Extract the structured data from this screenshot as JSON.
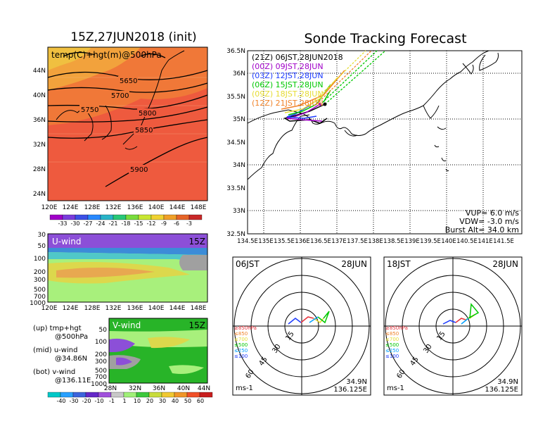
{
  "left_title": "15Z,27JUN2018 (init)",
  "right_title": "Sonde Tracking Forecast",
  "top_map": {
    "field_label": "temp(C)+hgt(m)@500hPa",
    "lat_labels": [
      "44N",
      "40N",
      "36N",
      "32N",
      "28N",
      "24N"
    ],
    "lon_labels": [
      "120E",
      "124E",
      "128E",
      "132E",
      "136E",
      "140E",
      "144E",
      "148E"
    ],
    "contours": [
      "5650",
      "5700",
      "5750",
      "5800",
      "5850",
      "5900"
    ],
    "colorbar_labels": [
      "-33",
      "-30",
      "-27",
      "-24",
      "-21",
      "-18",
      "-15",
      "-12",
      "-9",
      "-6",
      "-3"
    ]
  },
  "u_panel": {
    "label": "U-wind",
    "time": "15Z",
    "p_labels": [
      "30",
      "50",
      "100",
      "200",
      "300",
      "500",
      "700",
      "1000"
    ],
    "lon_labels": [
      "120E",
      "124E",
      "128E",
      "132E",
      "136E",
      "140E",
      "144E",
      "148E"
    ]
  },
  "v_panel": {
    "label": "V-wind",
    "time": "15Z",
    "p_labels": [
      "50",
      "100",
      "200",
      "300",
      "500",
      "700",
      "1000"
    ],
    "lat_labels": [
      "28N",
      "32N",
      "36N",
      "40N",
      "44N"
    ]
  },
  "wind_colorbar_labels": [
    "-40",
    "-30",
    "-20",
    "-10",
    "-1",
    "1",
    "10",
    "20",
    "30",
    "40",
    "50",
    "60"
  ],
  "notes": {
    "up": "(up) tmp+hgt",
    "up2": "@500hPa",
    "mid": "(mid) u-wind",
    "mid2": "@34.86N",
    "bot": "(bot) v-wind",
    "bot2": "@136.11E"
  },
  "track_map": {
    "lat_labels": [
      "36.5N",
      "36N",
      "35.5N",
      "35N",
      "34.5N",
      "34N",
      "33.5N",
      "33N",
      "32.5N"
    ],
    "lon_labels": [
      "134.5E",
      "135E",
      "135.5E",
      "136E",
      "136.5E",
      "137E",
      "137.5E",
      "138E",
      "138.5E",
      "139E",
      "139.5E",
      "140E",
      "140.5E",
      "141E",
      "141.5E"
    ],
    "legend": [
      {
        "text": "(21Z) 06JST,28JUN2018",
        "color": "#000000"
      },
      {
        "text": "(00Z) 09JST,28JUN",
        "color": "#a000c8"
      },
      {
        "text": "(03Z) 12JST,28JUN",
        "color": "#1e3cff"
      },
      {
        "text": "(06Z) 15JST,28JUN",
        "color": "#00c800"
      },
      {
        "text": "(09Z) 18JST,28JUN",
        "color": "#e6dc32"
      },
      {
        "text": "(12Z) 21JST,28JUN",
        "color": "#f08228"
      }
    ],
    "vup": "VUP= 6.0 m/s",
    "vdw": "VDW= -3.0 m/s",
    "burst": "Burst Alt= 34.0 km"
  },
  "hodo1": {
    "time": "06JST",
    "date": "28JUN",
    "rings": [
      "15",
      "30",
      "45",
      "60"
    ],
    "levels": [
      {
        "text": "≥850hPa",
        "color": "#e6323c"
      },
      {
        "text": "≤850",
        "color": "#f08228"
      },
      {
        "text": "≤700",
        "color": "#e6dc32"
      },
      {
        "text": "≤500",
        "color": "#00c800"
      },
      {
        "text": "≤250",
        "color": "#00a0ff"
      },
      {
        "text": "≤100",
        "color": "#1e3cff"
      }
    ],
    "units": "ms-1",
    "lat": "34.9N",
    "lon": "136.125E"
  },
  "hodo2": {
    "time": "18JST",
    "date": "28JUN",
    "rings": [
      "15",
      "30",
      "45",
      "60"
    ],
    "levels": [
      {
        "text": "≥850hPa",
        "color": "#e6323c"
      },
      {
        "text": "≤850",
        "color": "#f08228"
      },
      {
        "text": "≤700",
        "color": "#e6dc32"
      },
      {
        "text": "≤500",
        "color": "#00c800"
      },
      {
        "text": "≤250",
        "color": "#00a0ff"
      },
      {
        "text": "≤100",
        "color": "#1e3cff"
      }
    ],
    "units": "ms-1",
    "lat": "34.9N",
    "lon": "136.125E"
  }
}
